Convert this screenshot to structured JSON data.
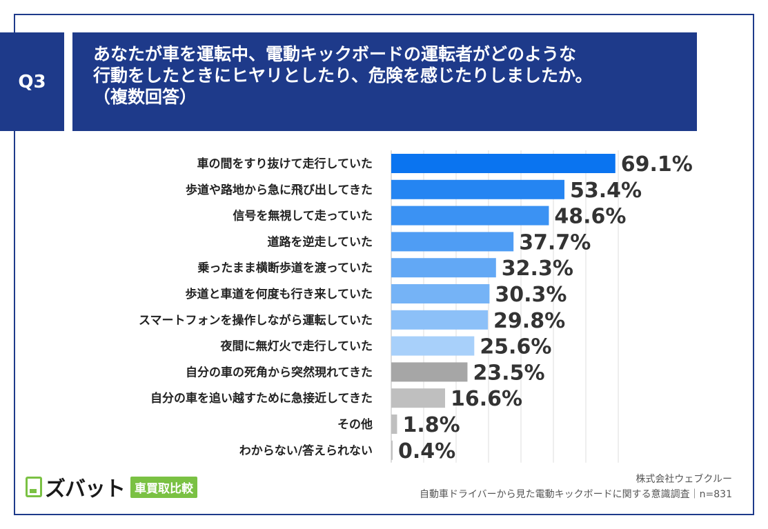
{
  "header": {
    "question_no": "Q3",
    "title_lines": [
      "あなたが車を運転中、電動キックボードの運転者がどのような",
      "行動をしたときにヒヤリとしたり、危険を感じたりしましたか。",
      "（複数回答）"
    ]
  },
  "chart_data": {
    "type": "bar",
    "orientation": "horizontal",
    "categories": [
      "車の間をすり抜けて走行していた",
      "歩道や路地から急に飛び出してきた",
      "信号を無視して走っていた",
      "道路を逆走していた",
      "乗ったまま横断歩道を渡っていた",
      "歩道と車道を何度も行き来していた",
      "スマートフォンを操作しながら運転していた",
      "夜間に無灯火で走行していた",
      "自分の車の死角から突然現れてきた",
      "自分の車を追い越すために急接近してきた",
      "その他",
      "わからない/答えられない"
    ],
    "values": [
      69.1,
      53.4,
      48.6,
      37.7,
      32.3,
      30.3,
      29.8,
      25.6,
      23.5,
      16.6,
      1.8,
      0.4
    ],
    "value_labels": [
      "69.1%",
      "53.4%",
      "48.6%",
      "37.7%",
      "32.3%",
      "30.3%",
      "29.8%",
      "25.6%",
      "23.5%",
      "16.6%",
      "1.8%",
      "0.4%"
    ],
    "unit": "%",
    "xlim": [
      0,
      70
    ],
    "grid": true,
    "bar_colors": [
      "#0a74f0",
      "#2585f2",
      "#3b92f3",
      "#4f9df4",
      "#62a8f5",
      "#75b3f6",
      "#8cc0f8",
      "#a8d0fa",
      "#a6a6a6",
      "#bfbfbf",
      "#bfbfbf",
      "#bfbfbf"
    ]
  },
  "logo": {
    "text": "ズバット",
    "badge": "車買取比較"
  },
  "source": {
    "company": "株式会社ウェブクルー",
    "survey": "自動車ドライバーから見た電動キックボードに関する意識調査｜n=831"
  }
}
